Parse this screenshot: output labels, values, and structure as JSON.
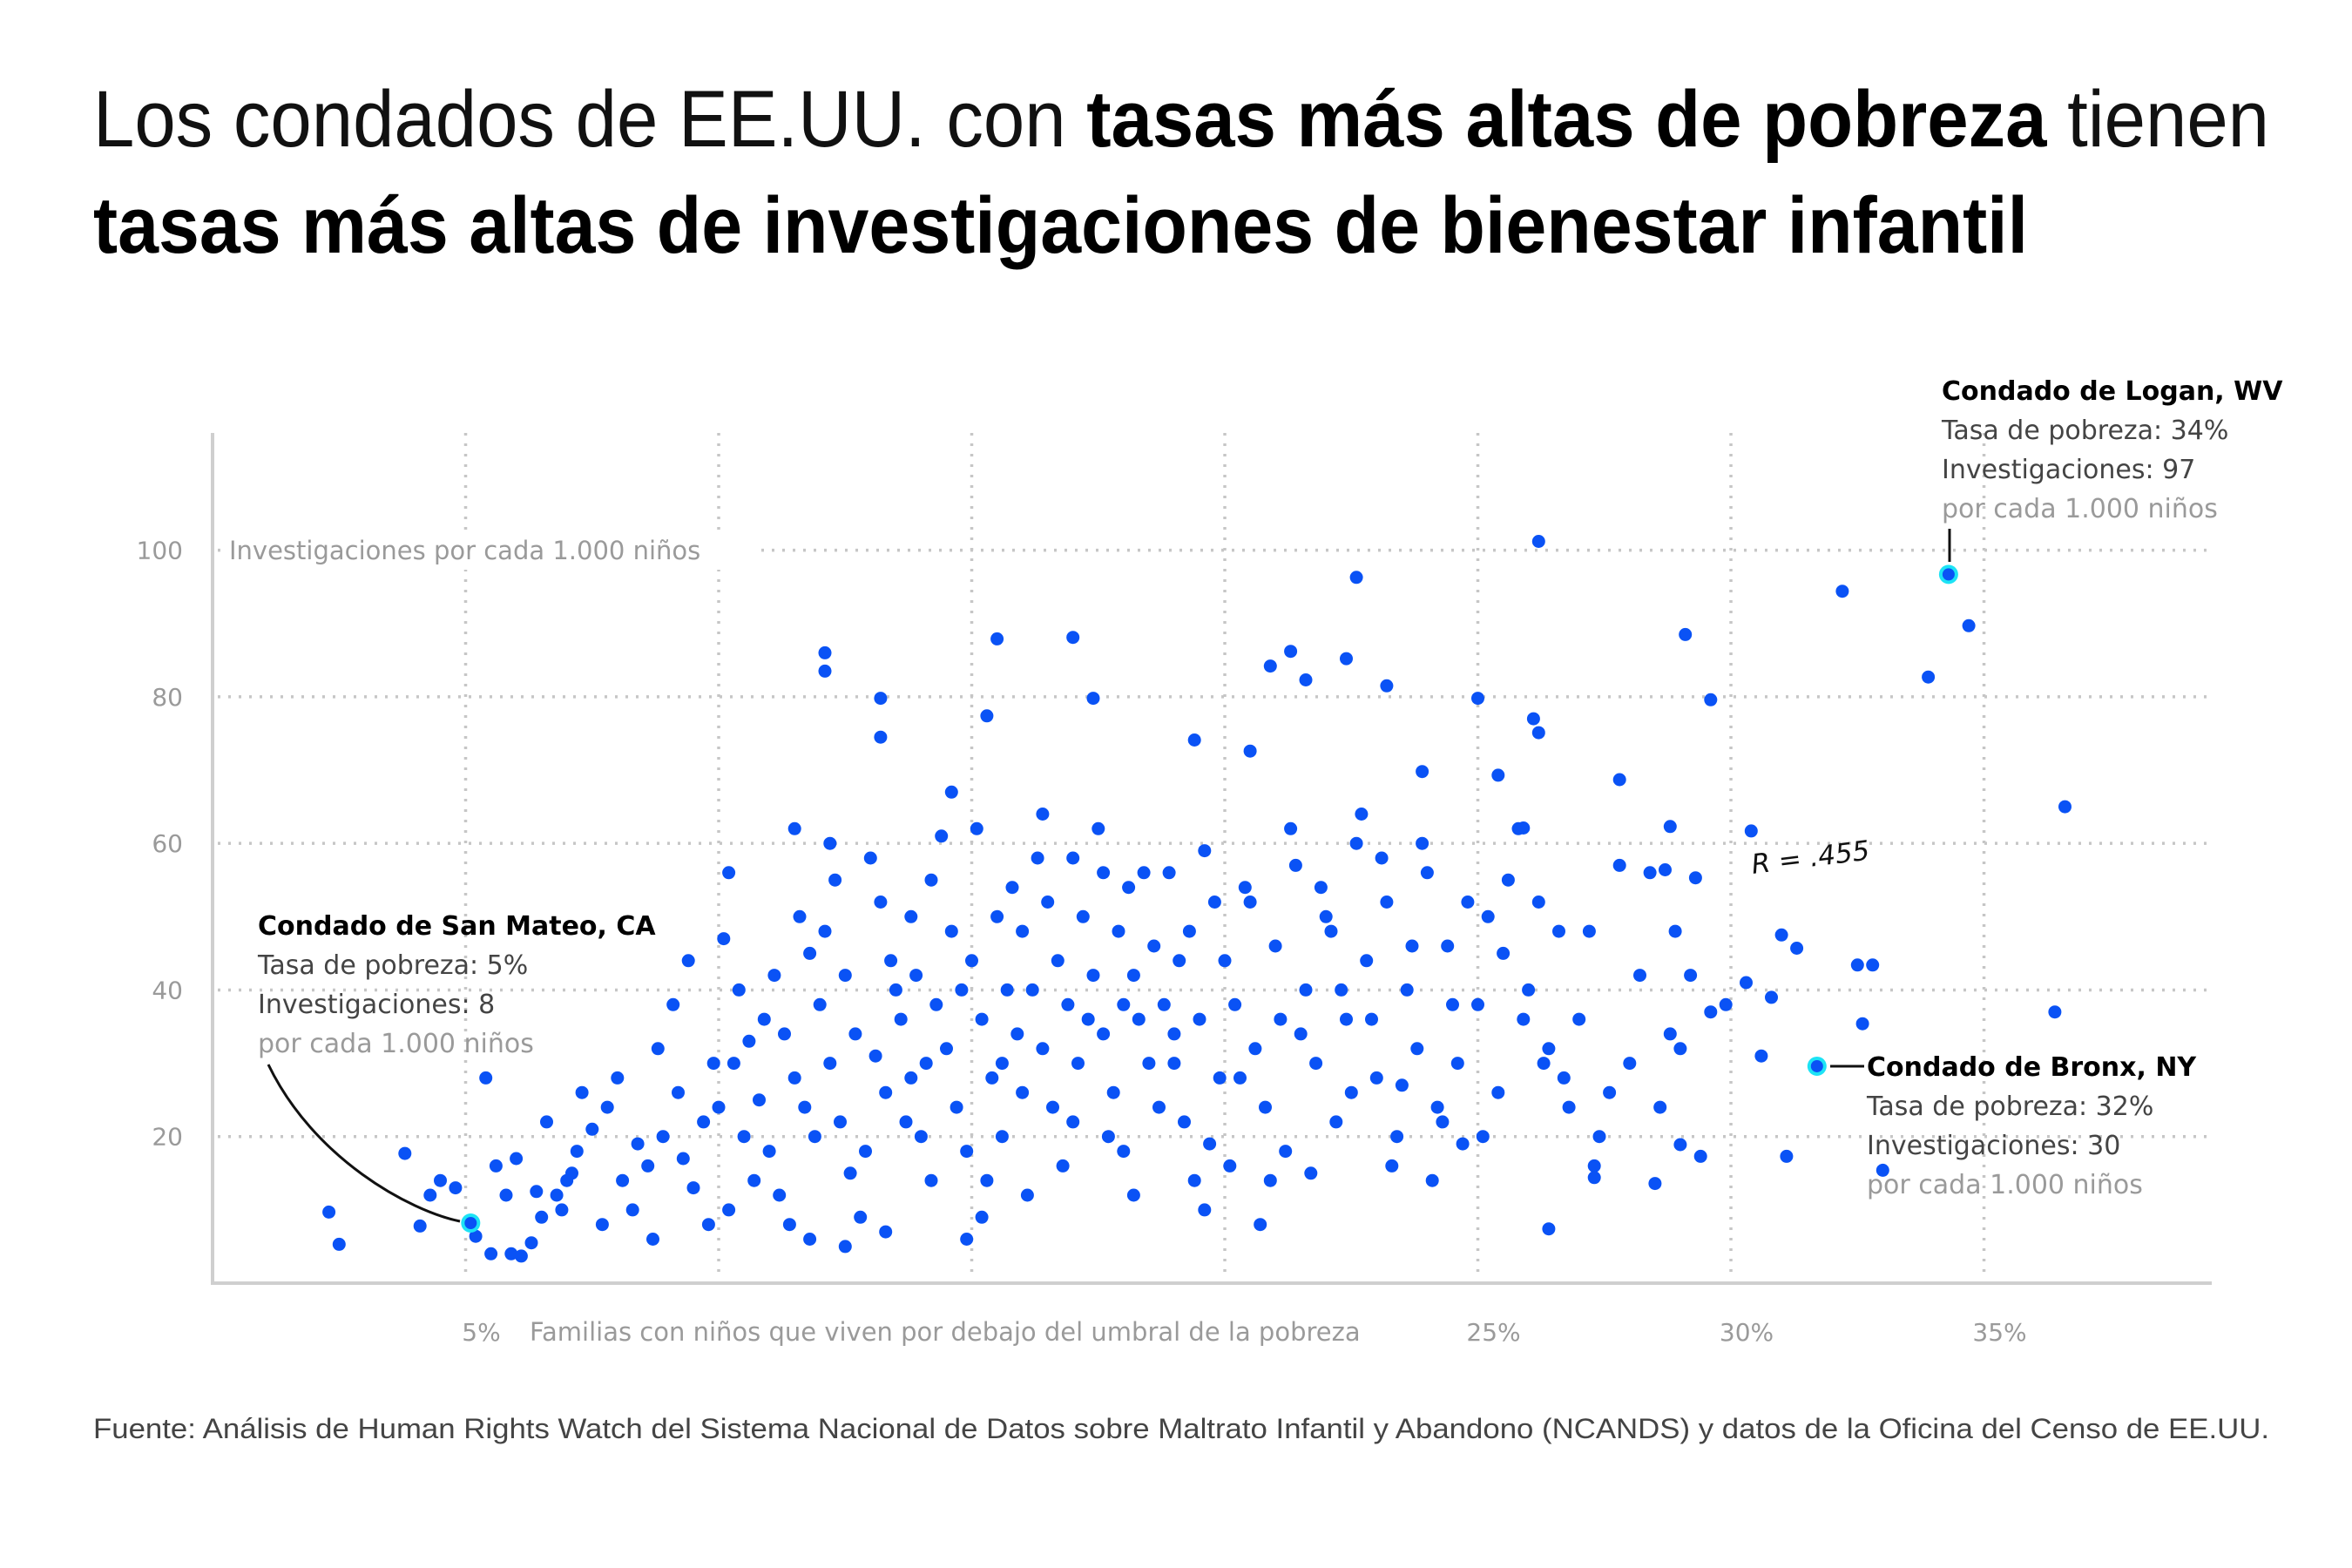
{
  "title": {
    "line1_regular_a": "Los condados de EE.UU. con ",
    "line1_bold": "tasas más altas de pobreza",
    "line1_regular_b": " tienen",
    "line2_bold": "tasas más altas de investigaciones de bienestar infantil"
  },
  "source": "Fuente: Análisis de Human Rights Watch del Sistema Nacional de Datos sobre Maltrato Infantil y Abandono (NCANDS) y datos de la Oficina del Censo de EE.UU.",
  "colors": {
    "dot": "#0a52f5",
    "highlight_ring": "#1de3f5",
    "grid": "#c6c6c6",
    "axis": "#cfcfcf"
  },
  "chart_data": {
    "type": "scatter",
    "xlabel": "Familias con niños que viven por debajo del umbral de la pobreza",
    "ylabel": "Investigaciones por cada 1.000 niños",
    "xlim": [
      0,
      39.5
    ],
    "ylim": [
      0,
      116
    ],
    "x_ticks": [
      5,
      10,
      15,
      20,
      25,
      30,
      35
    ],
    "x_tick_labels": [
      "5%",
      "",
      "",
      "",
      "25%",
      "30%",
      "35%"
    ],
    "y_ticks": [
      20,
      40,
      60,
      80,
      100
    ],
    "y_tick_labels": [
      "20",
      "40",
      "60",
      "80",
      "100"
    ],
    "grid": true,
    "correlation_label": "R = .455",
    "highlights": [
      {
        "name": "Condado de San Mateo, CA",
        "line1": "Tasa de pobreza: 5%",
        "line2": "Investigaciones: 8",
        "line3": "por cada 1.000 niños",
        "x": 5.1,
        "y": 8.2
      },
      {
        "name": "Condado de Logan, WV",
        "line1": "Tasa de pobreza: 34%",
        "line2": "Investigaciones: 97",
        "line3": "por cada 1.000 niños",
        "x": 34.3,
        "y": 96.7
      },
      {
        "name": "Condado de Bronx, NY",
        "line1": "Tasa de pobreza: 32%",
        "line2": "Investigaciones: 30",
        "line3": "por cada 1.000 niños",
        "x": 31.7,
        "y": 29.6
      }
    ],
    "points": [
      [
        2.3,
        9.7
      ],
      [
        2.5,
        5.3
      ],
      [
        3.8,
        17.7
      ],
      [
        4.1,
        7.8
      ],
      [
        4.3,
        12
      ],
      [
        4.5,
        14
      ],
      [
        4.8,
        13
      ],
      [
        5.2,
        6.4
      ],
      [
        5.4,
        28
      ],
      [
        5.5,
        4
      ],
      [
        5.9,
        4
      ],
      [
        6.1,
        3.7
      ],
      [
        6.3,
        5.5
      ],
      [
        6.5,
        9
      ],
      [
        6.8,
        12
      ],
      [
        7.0,
        14
      ],
      [
        7.2,
        18
      ],
      [
        7.5,
        21
      ],
      [
        7.8,
        24
      ],
      [
        8.0,
        28
      ],
      [
        8.3,
        10
      ],
      [
        8.6,
        16
      ],
      [
        8.9,
        20
      ],
      [
        9.2,
        26
      ],
      [
        9.5,
        13
      ],
      [
        9.8,
        8
      ],
      [
        6.0,
        17
      ],
      [
        6.6,
        22
      ],
      [
        7.3,
        26
      ],
      [
        8.1,
        14
      ],
      [
        8.8,
        32
      ],
      [
        9.1,
        38
      ],
      [
        9.4,
        44
      ],
      [
        9.7,
        22
      ],
      [
        5.8,
        12
      ],
      [
        6.9,
        10
      ],
      [
        7.7,
        8
      ],
      [
        8.4,
        19
      ],
      [
        9.9,
        30
      ],
      [
        8.7,
        6
      ],
      [
        9.3,
        17
      ],
      [
        7.1,
        15
      ],
      [
        6.4,
        12.5
      ],
      [
        5.6,
        16
      ],
      [
        10.1,
        47
      ],
      [
        10.2,
        56
      ],
      [
        10.4,
        40
      ],
      [
        10.6,
        33
      ],
      [
        10.8,
        25
      ],
      [
        11.0,
        18
      ],
      [
        11.2,
        12
      ],
      [
        11.4,
        8
      ],
      [
        11.6,
        50
      ],
      [
        11.8,
        45
      ],
      [
        12.0,
        38
      ],
      [
        12.2,
        30
      ],
      [
        12.4,
        22
      ],
      [
        12.6,
        15
      ],
      [
        12.8,
        9
      ],
      [
        13.0,
        58
      ],
      [
        13.2,
        52
      ],
      [
        13.4,
        44
      ],
      [
        13.6,
        36
      ],
      [
        13.8,
        28
      ],
      [
        14.0,
        20
      ],
      [
        14.2,
        14
      ],
      [
        14.4,
        61
      ],
      [
        14.6,
        48
      ],
      [
        14.8,
        40
      ],
      [
        10.3,
        30
      ],
      [
        10.9,
        36
      ],
      [
        11.5,
        28
      ],
      [
        12.1,
        48
      ],
      [
        12.7,
        34
      ],
      [
        13.3,
        26
      ],
      [
        13.9,
        42
      ],
      [
        14.5,
        32
      ],
      [
        10.5,
        20
      ],
      [
        11.1,
        42
      ],
      [
        11.7,
        24
      ],
      [
        12.3,
        55
      ],
      [
        12.9,
        18
      ],
      [
        13.5,
        40
      ],
      [
        14.1,
        30
      ],
      [
        14.7,
        24
      ],
      [
        10.7,
        14
      ],
      [
        11.3,
        34
      ],
      [
        11.9,
        20
      ],
      [
        12.5,
        42
      ],
      [
        13.1,
        31
      ],
      [
        13.7,
        22
      ],
      [
        14.3,
        38
      ],
      [
        14.9,
        18
      ],
      [
        10.0,
        24
      ],
      [
        11.5,
        62
      ],
      [
        12.5,
        5
      ],
      [
        13.3,
        7
      ],
      [
        14.2,
        55
      ],
      [
        12.2,
        60
      ],
      [
        13.8,
        50
      ],
      [
        14.6,
        67
      ],
      [
        10.2,
        10
      ],
      [
        11.8,
        6
      ],
      [
        14.9,
        6
      ],
      [
        12.1,
        86
      ],
      [
        12.1,
        83.5
      ],
      [
        13.2,
        79.8
      ],
      [
        13.2,
        74.5
      ],
      [
        15.5,
        87.9
      ],
      [
        15.3,
        77.4
      ],
      [
        17.0,
        88.1
      ],
      [
        17.4,
        79.8
      ],
      [
        19.4,
        74.1
      ],
      [
        15.0,
        44
      ],
      [
        15.2,
        36
      ],
      [
        15.4,
        28
      ],
      [
        15.6,
        20
      ],
      [
        15.8,
        54
      ],
      [
        16.0,
        48
      ],
      [
        16.2,
        40
      ],
      [
        16.4,
        32
      ],
      [
        16.6,
        24
      ],
      [
        16.8,
        16
      ],
      [
        17.0,
        58
      ],
      [
        17.2,
        50
      ],
      [
        17.4,
        42
      ],
      [
        17.6,
        34
      ],
      [
        17.8,
        26
      ],
      [
        18.0,
        18
      ],
      [
        18.2,
        12
      ],
      [
        18.4,
        56
      ],
      [
        18.6,
        46
      ],
      [
        18.8,
        38
      ],
      [
        19.0,
        30
      ],
      [
        19.2,
        22
      ],
      [
        19.4,
        14
      ],
      [
        19.6,
        59
      ],
      [
        19.8,
        52
      ],
      [
        15.1,
        62
      ],
      [
        15.5,
        50
      ],
      [
        15.9,
        34
      ],
      [
        16.3,
        58
      ],
      [
        16.7,
        44
      ],
      [
        17.1,
        30
      ],
      [
        17.5,
        62
      ],
      [
        17.9,
        48
      ],
      [
        18.3,
        36
      ],
      [
        18.7,
        24
      ],
      [
        19.1,
        44
      ],
      [
        19.5,
        36
      ],
      [
        19.9,
        28
      ],
      [
        15.3,
        14
      ],
      [
        16.1,
        12
      ],
      [
        16.9,
        38
      ],
      [
        17.7,
        20
      ],
      [
        18.5,
        30
      ],
      [
        19.3,
        48
      ],
      [
        15.7,
        40
      ],
      [
        16.5,
        52
      ],
      [
        17.3,
        36
      ],
      [
        18.1,
        54
      ],
      [
        18.9,
        56
      ],
      [
        19.7,
        19
      ],
      [
        15.2,
        9
      ],
      [
        16.4,
        64
      ],
      [
        17.6,
        56
      ],
      [
        18.2,
        42
      ],
      [
        19.6,
        10
      ],
      [
        16.0,
        26
      ],
      [
        17.0,
        22
      ],
      [
        18.0,
        38
      ],
      [
        19.0,
        34
      ],
      [
        15.6,
        30
      ],
      [
        20.5,
        72.6
      ],
      [
        20.9,
        84.2
      ],
      [
        21.3,
        86.2
      ],
      [
        21.6,
        82.3
      ],
      [
        22.4,
        85.2
      ],
      [
        22.6,
        96.3
      ],
      [
        23.2,
        81.5
      ],
      [
        23.9,
        69.8
      ],
      [
        20.0,
        44
      ],
      [
        20.2,
        38
      ],
      [
        20.4,
        54
      ],
      [
        20.6,
        32
      ],
      [
        20.8,
        24
      ],
      [
        21.0,
        46
      ],
      [
        21.2,
        18
      ],
      [
        21.4,
        57
      ],
      [
        21.6,
        40
      ],
      [
        21.8,
        30
      ],
      [
        22.0,
        50
      ],
      [
        22.2,
        22
      ],
      [
        22.4,
        36
      ],
      [
        22.6,
        60
      ],
      [
        22.8,
        44
      ],
      [
        23.0,
        28
      ],
      [
        23.2,
        52
      ],
      [
        23.4,
        20
      ],
      [
        23.6,
        40
      ],
      [
        23.8,
        32
      ],
      [
        24.0,
        56
      ],
      [
        24.2,
        24
      ],
      [
        24.4,
        46
      ],
      [
        24.6,
        30
      ],
      [
        24.8,
        52
      ],
      [
        20.1,
        16
      ],
      [
        20.9,
        14
      ],
      [
        21.7,
        15
      ],
      [
        22.5,
        26
      ],
      [
        23.3,
        16
      ],
      [
        24.1,
        14
      ],
      [
        20.5,
        52
      ],
      [
        21.3,
        62
      ],
      [
        22.1,
        48
      ],
      [
        22.9,
        36
      ],
      [
        23.7,
        46
      ],
      [
        24.5,
        38
      ],
      [
        20.3,
        28
      ],
      [
        21.1,
        36
      ],
      [
        21.9,
        54
      ],
      [
        22.7,
        64
      ],
      [
        23.5,
        27
      ],
      [
        24.3,
        22
      ],
      [
        20.7,
        8
      ],
      [
        21.5,
        34
      ],
      [
        22.3,
        40
      ],
      [
        23.1,
        58
      ],
      [
        23.9,
        60
      ],
      [
        24.7,
        19
      ],
      [
        25.0,
        79.8
      ],
      [
        25.4,
        69.3
      ],
      [
        25.9,
        62.1
      ],
      [
        26.1,
        77.0
      ],
      [
        26.2,
        75.1
      ],
      [
        26.2,
        101.2
      ],
      [
        27.8,
        68.7
      ],
      [
        28.7,
        56.4
      ],
      [
        28.8,
        62.3
      ],
      [
        29.3,
        55.3
      ],
      [
        25.0,
        38
      ],
      [
        25.2,
        50
      ],
      [
        25.4,
        26
      ],
      [
        25.6,
        55
      ],
      [
        25.8,
        62
      ],
      [
        26.0,
        40
      ],
      [
        26.2,
        52
      ],
      [
        26.4,
        32
      ],
      [
        26.6,
        48
      ],
      [
        26.8,
        24
      ],
      [
        27.0,
        36
      ],
      [
        27.2,
        48
      ],
      [
        27.4,
        20
      ],
      [
        27.6,
        26
      ],
      [
        27.8,
        57
      ],
      [
        28.0,
        30
      ],
      [
        28.2,
        42
      ],
      [
        28.4,
        56
      ],
      [
        28.6,
        24
      ],
      [
        28.8,
        34
      ],
      [
        29.0,
        32
      ],
      [
        29.2,
        42
      ],
      [
        29.6,
        37
      ],
      [
        29.9,
        38
      ],
      [
        30.3,
        41
      ],
      [
        30.6,
        31
      ],
      [
        30.8,
        39
      ],
      [
        25.1,
        20
      ],
      [
        25.9,
        36
      ],
      [
        26.7,
        28
      ],
      [
        27.3,
        16
      ],
      [
        28.9,
        48
      ],
      [
        25.5,
        45
      ],
      [
        26.3,
        30
      ],
      [
        26.4,
        7.4
      ],
      [
        27.3,
        14.4
      ],
      [
        28.5,
        13.6
      ],
      [
        29.0,
        18.9
      ],
      [
        29.4,
        17.3
      ],
      [
        31.1,
        17.3
      ],
      [
        33.0,
        15.4
      ],
      [
        29.1,
        88.5
      ],
      [
        29.6,
        79.6
      ],
      [
        30.4,
        61.7
      ],
      [
        31.0,
        47.5
      ],
      [
        31.3,
        45.7
      ],
      [
        32.2,
        94.4
      ],
      [
        32.5,
        43.4
      ],
      [
        32.8,
        43.4
      ],
      [
        32.6,
        35.4
      ],
      [
        33.9,
        82.7
      ],
      [
        34.7,
        89.7
      ],
      [
        36.6,
        65.0
      ],
      [
        36.4,
        37.0
      ]
    ]
  }
}
